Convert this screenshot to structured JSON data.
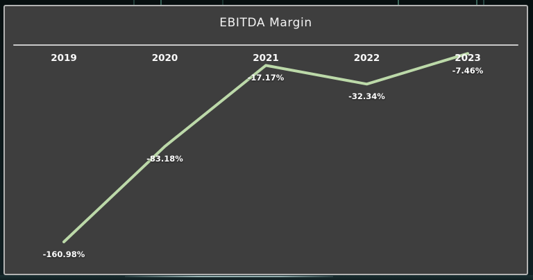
{
  "card": {
    "title": "EBITDA Margin"
  },
  "colors": {
    "line": "#bcd9a9",
    "card_background": "#3e3e3e",
    "card_border": "#b3b3b3",
    "divider": "#c9c9c9",
    "text": "#f2f2f2",
    "page_background": "#0c181a"
  },
  "chart_data": {
    "type": "line",
    "title": "EBITDA Margin",
    "series_name": "EBITDA Margin",
    "categories": [
      "2019",
      "2020",
      "2021",
      "2022",
      "2023"
    ],
    "values": [
      -160.98,
      -83.18,
      -17.17,
      -32.34,
      -7.46
    ],
    "labels": [
      "-160.98%",
      "-83.18%",
      "-17.17%",
      "-32.34%",
      "-7.46%"
    ],
    "xlabel": "",
    "ylabel": "",
    "ylim": [
      -170,
      0
    ],
    "x_axis_position": "top",
    "grid": false,
    "legend": false,
    "line_color": "#bcd9a9",
    "data_label_position": "below-point"
  }
}
